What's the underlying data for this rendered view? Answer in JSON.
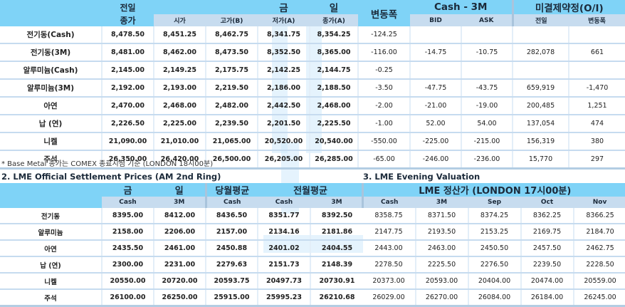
{
  "table1": {
    "header_top": {
      "prev": "전일",
      "today_a": "금",
      "today_b": "일",
      "change": "변동폭",
      "spread": "Cash - 3M",
      "oi": "미결제약정(O/I)"
    },
    "header_sub": {
      "prev_close": "종가",
      "open": "시가",
      "high": "고가(B)",
      "low": "저가(A)",
      "close": "종가(A)",
      "bid": "BID",
      "ask": "ASK",
      "oi_prev": "전일",
      "oi_change": "변동폭"
    },
    "rows": [
      {
        "name": "전기동(Cash)",
        "prev_close": "8,478.50",
        "open": "8,451.25",
        "high": "8,462.75",
        "low": "8,341.75",
        "close": "8,354.25",
        "change": "-124.25",
        "bid": "",
        "ask": "",
        "oi_prev": "",
        "oi_change": ""
      },
      {
        "name": "전기동(3M)",
        "prev_close": "8,481.00",
        "open": "8,462.00",
        "high": "8,473.50",
        "low": "8,352.50",
        "close": "8,365.00",
        "change": "-116.00",
        "bid": "-14.75",
        "ask": "-10.75",
        "oi_prev": "282,078",
        "oi_change": "661"
      },
      {
        "name": "알루미늄(Cash)",
        "prev_close": "2,145.00",
        "open": "2,149.25",
        "high": "2,175.75",
        "low": "2,142.25",
        "close": "2,144.75",
        "change": "-0.25",
        "bid": "",
        "ask": "",
        "oi_prev": "",
        "oi_change": ""
      },
      {
        "name": "알루미늄(3M)",
        "prev_close": "2,192.00",
        "open": "2,193.00",
        "high": "2,219.50",
        "low": "2,186.00",
        "close": "2,188.50",
        "change": "-3.50",
        "bid": "-47.75",
        "ask": "-43.75",
        "oi_prev": "659,919",
        "oi_change": "-1,470"
      },
      {
        "name": "아연",
        "prev_close": "2,470.00",
        "open": "2,468.00",
        "high": "2,482.00",
        "low": "2,442.50",
        "close": "2,468.00",
        "change": "-2.00",
        "bid": "-21.00",
        "ask": "-19.00",
        "oi_prev": "200,485",
        "oi_change": "1,251"
      },
      {
        "name": "납 (연)",
        "prev_close": "2,226.50",
        "open": "2,225.00",
        "high": "2,239.50",
        "low": "2,201.50",
        "close": "2,225.50",
        "change": "-1.00",
        "bid": "52.00",
        "ask": "54.00",
        "oi_prev": "137,054",
        "oi_change": "474"
      },
      {
        "name": "니켈",
        "prev_close": "21,090.00",
        "open": "21,010.00",
        "high": "21,065.00",
        "low": "20,520.00",
        "close": "20,540.00",
        "change": "-550.00",
        "bid": "-225.00",
        "ask": "-215.00",
        "oi_prev": "156,319",
        "oi_change": "380"
      },
      {
        "name": "주석",
        "prev_close": "26,350.00",
        "open": "26,420.00",
        "high": "26,500.00",
        "low": "26,205.00",
        "close": "26,285.00",
        "change": "-65.00",
        "bid": "-246.00",
        "ask": "-236.00",
        "oi_prev": "15,770",
        "oi_change": "297"
      }
    ],
    "note": "* Base Metal 종가는 COMEX 종료시점 기준 (LONDON 18시00분)"
  },
  "section2": {
    "title": "2. LME Official Settlement Prices (AM 2nd Ring)",
    "header_top": {
      "today_a": "금",
      "today_b": "일",
      "month_avg": "당월평균",
      "prev_month_avg": "전월평균"
    },
    "header_sub": {
      "c1": "Cash",
      "c2": "3M",
      "c3": "Cash",
      "c4": "Cash",
      "c5": "3M"
    },
    "rows": [
      {
        "name": "전기동",
        "c1": "8395.00",
        "c2": "8412.00",
        "c3": "8436.50",
        "c4": "8351.77",
        "c5": "8392.50"
      },
      {
        "name": "알루미늄",
        "c1": "2158.00",
        "c2": "2206.00",
        "c3": "2157.00",
        "c4": "2134.16",
        "c5": "2181.86"
      },
      {
        "name": "아연",
        "c1": "2435.50",
        "c2": "2461.00",
        "c3": "2450.88",
        "c4": "2401.02",
        "c5": "2404.55"
      },
      {
        "name": "납 (연)",
        "c1": "2300.00",
        "c2": "2231.00",
        "c3": "2279.63",
        "c4": "2151.73",
        "c5": "2148.39"
      },
      {
        "name": "니켈",
        "c1": "20550.00",
        "c2": "20720.00",
        "c3": "20593.75",
        "c4": "20497.73",
        "c5": "20730.91"
      },
      {
        "name": "주석",
        "c1": "26100.00",
        "c2": "26250.00",
        "c3": "25915.00",
        "c4": "25995.23",
        "c5": "26210.68"
      }
    ]
  },
  "section3": {
    "title": "3. LME Evening Valuation",
    "header_top": "LME 정산가 (LONDON 17시00분)",
    "header_sub": {
      "c1": "Cash",
      "c2": "3M",
      "c3": "Sep",
      "c4": "Oct",
      "c5": "Nov"
    },
    "rows": [
      {
        "c1": "8358.75",
        "c2": "8371.50",
        "c3": "8374.25",
        "c4": "8362.25",
        "c5": "8366.25"
      },
      {
        "c1": "2147.75",
        "c2": "2193.50",
        "c3": "2153.25",
        "c4": "2169.75",
        "c5": "2184.70"
      },
      {
        "c1": "2443.00",
        "c2": "2463.00",
        "c3": "2450.50",
        "c4": "2457.50",
        "c5": "2462.75"
      },
      {
        "c1": "2278.50",
        "c2": "2225.50",
        "c3": "2276.50",
        "c4": "2239.50",
        "c5": "2228.50"
      },
      {
        "c1": "20373.00",
        "c2": "20593.00",
        "c3": "20404.00",
        "c4": "20474.00",
        "c5": "20559.00"
      },
      {
        "c1": "26029.00",
        "c2": "26270.00",
        "c3": "26084.00",
        "c4": "26184.00",
        "c5": "26245.00"
      }
    ]
  }
}
